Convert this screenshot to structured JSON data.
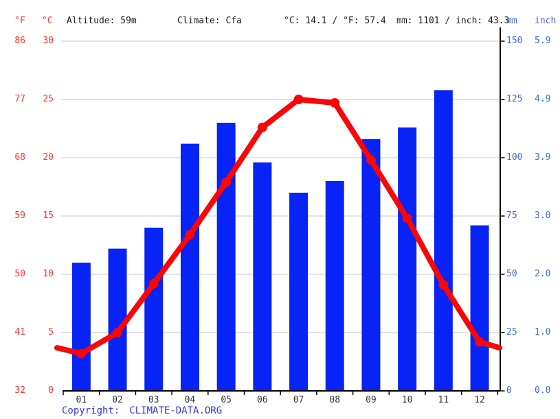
{
  "header": {
    "f_label": "°F",
    "c_label": "°C",
    "altitude": "Altitude: 59m",
    "climate": "Climate: Cfa",
    "temp_summary": "°C: 14.1 / °F: 57.4",
    "precip_summary": "mm: 1101 / inch: 43.3",
    "mm_label": "mm",
    "inch_label": "inch"
  },
  "axes": {
    "left_rows": [
      {
        "f": "86",
        "c": "30"
      },
      {
        "f": "77",
        "c": "25"
      },
      {
        "f": "68",
        "c": "20"
      },
      {
        "f": "59",
        "c": "15"
      },
      {
        "f": "50",
        "c": "10"
      },
      {
        "f": "41",
        "c": "5"
      },
      {
        "f": "32",
        "c": "0"
      }
    ],
    "right_rows": [
      {
        "mm": "150",
        "inch": "5.9"
      },
      {
        "mm": "125",
        "inch": "4.9"
      },
      {
        "mm": "100",
        "inch": "3.9"
      },
      {
        "mm": "75",
        "inch": "3.0"
      },
      {
        "mm": "50",
        "inch": "2.0"
      },
      {
        "mm": "25",
        "inch": "1.0"
      },
      {
        "mm": "0",
        "inch": "0.0"
      }
    ]
  },
  "chart_data": {
    "type": "combo",
    "categories": [
      "01",
      "02",
      "03",
      "04",
      "05",
      "06",
      "07",
      "08",
      "09",
      "10",
      "11",
      "12"
    ],
    "series": [
      {
        "name": "precipitation",
        "type": "bar",
        "unit": "mm",
        "values": [
          55,
          61,
          70,
          106,
          115,
          98,
          85,
          90,
          108,
          113,
          129,
          71
        ]
      },
      {
        "name": "temperature",
        "type": "line",
        "unit": "°C",
        "values": [
          3.2,
          5.0,
          9.2,
          13.4,
          17.9,
          22.6,
          25.0,
          24.7,
          19.8,
          14.8,
          9.1,
          4.2
        ],
        "edge_left_value": 3.7,
        "edge_right_value": 3.7
      }
    ],
    "y_left_axis": {
      "unit": "°C",
      "min": 0,
      "max": 30,
      "ticks": [
        0,
        5,
        10,
        15,
        20,
        25,
        30
      ]
    },
    "y_right_axis": {
      "unit": "mm",
      "min": 0,
      "max": 150,
      "ticks": [
        0,
        25,
        50,
        75,
        100,
        125,
        150
      ]
    },
    "grid": true,
    "legend": "none"
  },
  "colors": {
    "bar_blue": "#0823f5",
    "line_red": "#f90606",
    "label_red": "#ff3030",
    "label_blue": "#4169e1",
    "header_text": "#1c1c1c",
    "month_text": "#333333",
    "grid_gray": "#c9c9c9",
    "axis_black": "#000000",
    "copyright_blue": "#3232d9"
  },
  "copyright": {
    "prefix": "Copyright:",
    "link": "CLIMATE-DATA.ORG"
  }
}
